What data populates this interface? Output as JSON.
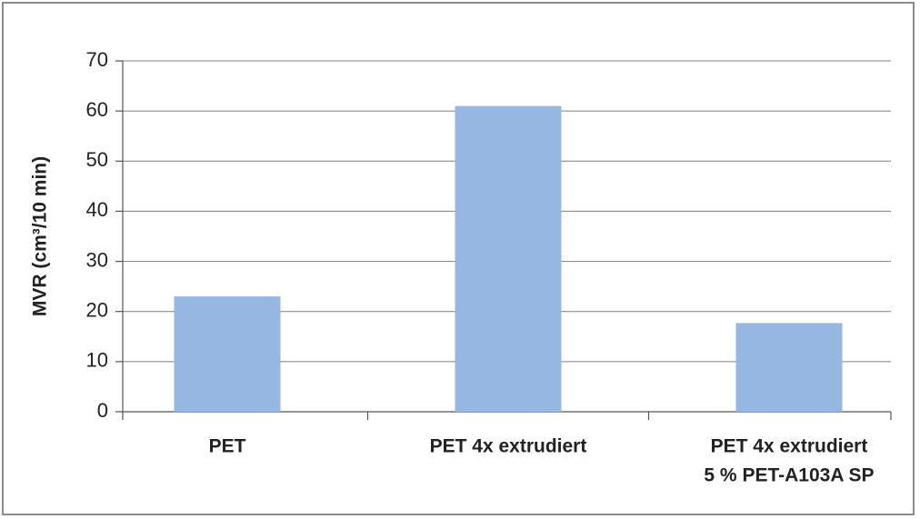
{
  "chart_data": {
    "type": "bar",
    "y_label": "MVR (cm³/10 min)",
    "categories": [
      "PET",
      "PET 4x extrudiert",
      [
        "PET 4x extrudiert",
        "5 % PET-A103A SP"
      ]
    ],
    "values": [
      23,
      61,
      17.7
    ],
    "color": "#95b7e2",
    "ylim": [
      0,
      70
    ],
    "yticks": [
      0,
      10,
      20,
      30,
      40,
      50,
      60,
      70
    ],
    "grid": true
  }
}
